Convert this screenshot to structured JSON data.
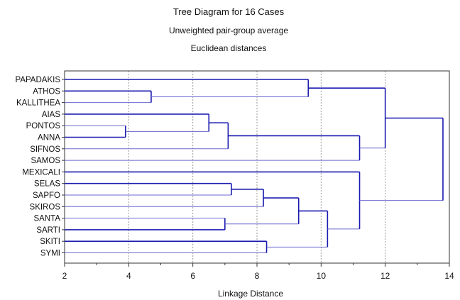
{
  "chart_data": {
    "type": "dendrogram",
    "title": "Tree Diagram for 16 Cases",
    "subtitle_lines": [
      "Unweighted pair-group average",
      "Euclidean distances"
    ],
    "xlabel": "Linkage Distance",
    "xlim": [
      2,
      14
    ],
    "xticks": [
      "2",
      "4",
      "6",
      "8",
      "10",
      "12",
      "14"
    ],
    "grid": "vertical dotted",
    "leaves": [
      "PAPADAKIS",
      "ATHOS",
      "KALLITHEA",
      "AIAS",
      "PONTOS",
      "ANNA",
      "SIFNOS",
      "SAMOS",
      "MEXICALI",
      "SELAS",
      "SAPFO",
      "SKIROS",
      "SANTA",
      "SARTI",
      "SKITI",
      "SYMI"
    ],
    "merges": [
      {
        "a": "L5",
        "b": "L4",
        "height": 3.9
      },
      {
        "a": "L1",
        "b": "L2",
        "height": 4.7
      },
      {
        "a": "L3",
        "b": "M0",
        "height": 6.5
      },
      {
        "a": "L13",
        "b": "L12",
        "height": 7.0
      },
      {
        "a": "M2",
        "b": "L6",
        "height": 7.1
      },
      {
        "a": "L9",
        "b": "L10",
        "height": 7.2
      },
      {
        "a": "M5",
        "b": "L11",
        "height": 8.2
      },
      {
        "a": "L14",
        "b": "L15",
        "height": 8.3
      },
      {
        "a": "M6",
        "b": "M3",
        "height": 9.3
      },
      {
        "a": "L0",
        "b": "M1",
        "height": 9.6
      },
      {
        "a": "M8",
        "b": "M7",
        "height": 10.2
      },
      {
        "a": "L8",
        "b": "M10",
        "height": 11.2
      },
      {
        "a": "M4",
        "b": "L7",
        "height": 11.2
      },
      {
        "a": "M9",
        "b": "M12",
        "height": 12.0
      },
      {
        "a": "M13",
        "b": "M11",
        "height": 13.8
      }
    ],
    "colors": {
      "thick": "#1a1ab0",
      "thin": "#6a6acf",
      "frame": "#333333",
      "grid": "#9a9a9a"
    }
  }
}
